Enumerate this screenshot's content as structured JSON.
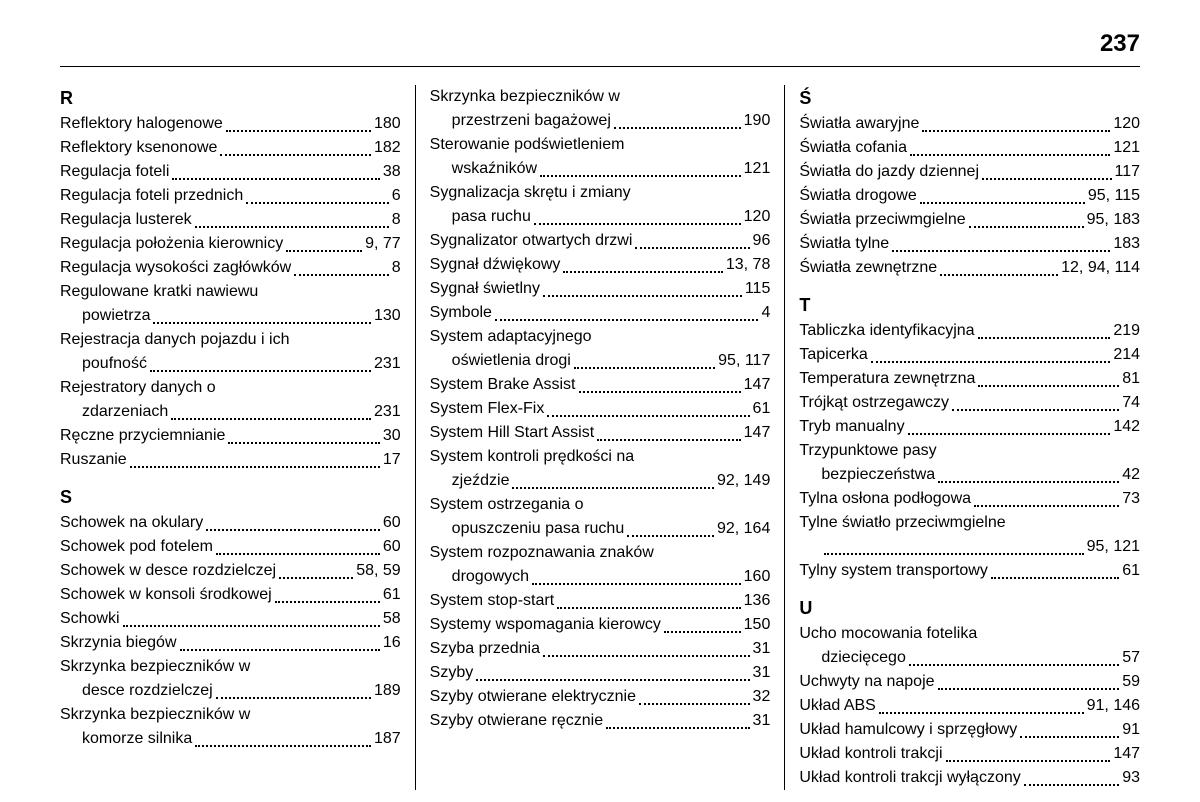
{
  "pageNumber": "237",
  "columns": [
    {
      "sections": [
        {
          "letter": "R",
          "entries": [
            {
              "label": "Reflektory halogenowe",
              "page": "180"
            },
            {
              "label": "Reflektory ksenonowe",
              "page": "182"
            },
            {
              "label": "Regulacja foteli",
              "page": "38"
            },
            {
              "label": "Regulacja foteli przednich",
              "page": "6"
            },
            {
              "label": "Regulacja lusterek",
              "page": "8"
            },
            {
              "label": "Regulacja położenia kierownicy",
              "page": "9, 77"
            },
            {
              "label": "Regulacja wysokości zagłówków",
              "page": "8"
            },
            {
              "label": "Regulowane kratki nawiewu",
              "contLabel": "powietrza",
              "page": "130"
            },
            {
              "label": "Rejestracja danych pojazdu i ich",
              "contLabel": "poufność",
              "page": "231"
            },
            {
              "label": "Rejestratory danych o",
              "contLabel": "zdarzeniach",
              "page": "231"
            },
            {
              "label": "Ręczne przyciemnianie",
              "page": "30"
            },
            {
              "label": "Ruszanie",
              "page": "17"
            }
          ]
        },
        {
          "letter": "S",
          "entries": [
            {
              "label": "Schowek na okulary",
              "page": "60"
            },
            {
              "label": "Schowek pod fotelem",
              "page": "60"
            },
            {
              "label": "Schowek w desce rozdzielczej",
              "page": "58, 59"
            },
            {
              "label": "Schowek w konsoli środkowej",
              "page": "61"
            },
            {
              "label": "Schowki",
              "page": "58"
            },
            {
              "label": "Skrzynia biegów",
              "page": "16"
            },
            {
              "label": "Skrzynka bezpieczników w",
              "contLabel": "desce rozdzielczej",
              "page": "189"
            },
            {
              "label": "Skrzynka bezpieczników w",
              "contLabel": "komorze silnika",
              "page": "187"
            }
          ]
        }
      ]
    },
    {
      "sections": [
        {
          "letter": null,
          "entries": [
            {
              "label": "Skrzynka bezpieczników w",
              "contLabel": "przestrzeni bagażowej",
              "page": "190"
            },
            {
              "label": "Sterowanie podświetleniem",
              "contLabel": "wskaźników",
              "page": "121"
            },
            {
              "label": "Sygnalizacja skrętu i zmiany",
              "contLabel": "pasa ruchu",
              "page": "120"
            },
            {
              "label": "Sygnalizator otwartych drzwi",
              "page": "96"
            },
            {
              "label": "Sygnał dźwiękowy",
              "page": "13, 78"
            },
            {
              "label": "Sygnał świetlny",
              "page": "115"
            },
            {
              "label": "Symbole",
              "page": "4"
            },
            {
              "label": "System adaptacyjnego",
              "contLabel": "oświetlenia drogi",
              "page": "95, 117"
            },
            {
              "label": "System Brake Assist",
              "page": "147"
            },
            {
              "label": "System Flex-Fix",
              "page": "61"
            },
            {
              "label": "System Hill Start Assist",
              "page": "147"
            },
            {
              "label": "System kontroli prędkości na",
              "contLabel": "zjeździe",
              "page": "92, 149"
            },
            {
              "label": "System ostrzegania o",
              "contLabel": "opuszczeniu pasa ruchu",
              "page": "92, 164"
            },
            {
              "label": "System rozpoznawania znaków",
              "contLabel": "drogowych",
              "page": "160"
            },
            {
              "label": "System stop-start",
              "page": "136"
            },
            {
              "label": "Systemy wspomagania kierowcy",
              "page": "150"
            },
            {
              "label": "Szyba przednia",
              "page": "31"
            },
            {
              "label": "Szyby",
              "page": "31"
            },
            {
              "label": "Szyby otwierane elektrycznie",
              "page": "32"
            },
            {
              "label": "Szyby otwierane ręcznie",
              "page": "31"
            }
          ]
        }
      ]
    },
    {
      "sections": [
        {
          "letter": "Ś",
          "entries": [
            {
              "label": "Światła awaryjne",
              "page": "120"
            },
            {
              "label": "Światła cofania",
              "page": "121"
            },
            {
              "label": "Światła do jazdy dziennej",
              "page": "117"
            },
            {
              "label": "Światła drogowe",
              "page": "95, 115"
            },
            {
              "label": "Światła przeciwmgielne",
              "page": "95, 183"
            },
            {
              "label": "Światła tylne",
              "page": "183"
            },
            {
              "label": "Światła zewnętrzne",
              "page": "12, 94, 114"
            }
          ]
        },
        {
          "letter": "T",
          "entries": [
            {
              "label": "Tabliczka identyfikacyjna",
              "page": "219"
            },
            {
              "label": "Tapicerka",
              "page": "214"
            },
            {
              "label": "Temperatura zewnętrzna",
              "page": "81"
            },
            {
              "label": "Trójkąt ostrzegawczy",
              "page": "74"
            },
            {
              "label": "Tryb manualny",
              "page": "142"
            },
            {
              "label": "Trzypunktowe pasy",
              "contLabel": "bezpieczeństwa",
              "page": "42"
            },
            {
              "label": "Tylna osłona podłogowa",
              "page": "73"
            },
            {
              "label": "Tylne światło przeciwmgielne",
              "contLabel": "",
              "page": "95, 121"
            },
            {
              "label": "Tylny system transportowy",
              "page": "61"
            }
          ]
        },
        {
          "letter": "U",
          "entries": [
            {
              "label": "Ucho mocowania fotelika",
              "contLabel": "dziecięcego",
              "page": "57"
            },
            {
              "label": "Uchwyty na napoje",
              "page": "59"
            },
            {
              "label": "Układ ABS",
              "page": "91, 146"
            },
            {
              "label": "Układ hamulcowy i sprzęgłowy",
              "page": "91"
            },
            {
              "label": "Układ kontroli trakcji",
              "page": "147"
            },
            {
              "label": "Układ kontroli trakcji wyłączony",
              "page": "93"
            }
          ]
        }
      ]
    }
  ]
}
